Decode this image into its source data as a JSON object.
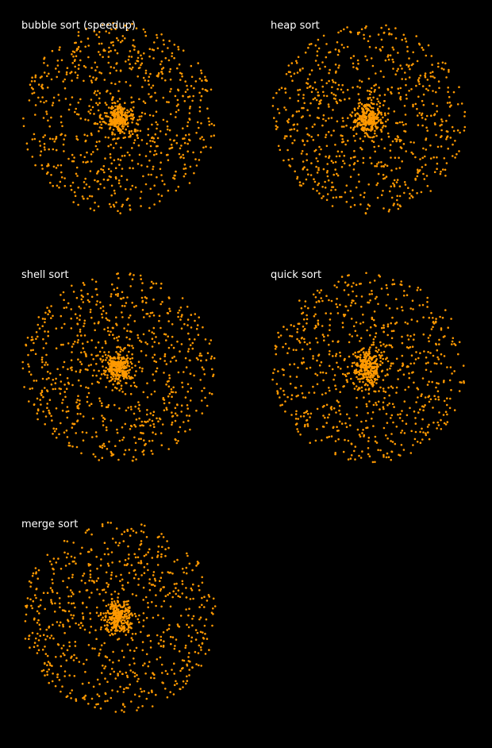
{
  "page": {
    "background": "#000000",
    "point_color": "#ff9900",
    "title_color": "#ffffff"
  },
  "panels": [
    {
      "title": "bubble sort (speedup)"
    },
    {
      "title": "heap sort"
    },
    {
      "title": "shell sort"
    },
    {
      "title": "quick sort"
    },
    {
      "title": "merge sort"
    }
  ]
}
